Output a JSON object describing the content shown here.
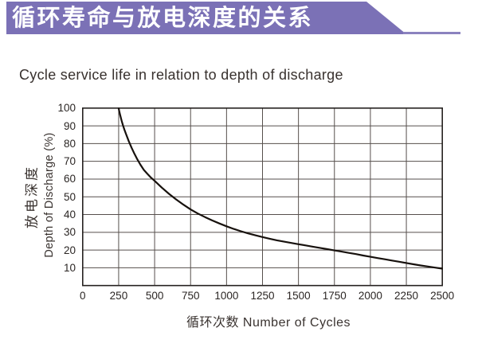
{
  "banner": {
    "title_zh": "循环寿命与放电深度的关系",
    "color": "#7b71b6"
  },
  "chart": {
    "title_en": "Cycle service life in relation to depth of discharge",
    "ylabel_zh": "放电深度",
    "ylabel_en": "Depth of Discharge (%)",
    "xlabel": "循环次数 Number of Cycles"
  },
  "chart_data": {
    "type": "line",
    "title": "Cycle service life in relation to depth of discharge",
    "xlabel": "循环次数 Number of Cycles",
    "ylabel": "放电深度 Depth of Discharge (%)",
    "xlim": [
      0,
      2500
    ],
    "ylim": [
      0,
      100
    ],
    "x_ticks": [
      0,
      250,
      500,
      750,
      1000,
      1250,
      1500,
      1750,
      2000,
      2250,
      2500
    ],
    "y_ticks": [
      10,
      20,
      30,
      40,
      50,
      60,
      70,
      80,
      90,
      100
    ],
    "grid": true,
    "legend": false,
    "key_points": [
      [
        250,
        100
      ],
      [
        500,
        59
      ],
      [
        750,
        43
      ],
      [
        1000,
        33.5
      ],
      [
        1250,
        27.5
      ],
      [
        1500,
        23.5
      ],
      [
        1750,
        20
      ],
      [
        2000,
        16
      ],
      [
        2250,
        12.5
      ],
      [
        2500,
        9.5
      ]
    ],
    "series": [
      {
        "name": "cycle-life-vs-depth-of-discharge",
        "points": [
          [
            250,
            100
          ],
          [
            255,
            98
          ],
          [
            260,
            96.3
          ],
          [
            270,
            93
          ],
          [
            280,
            90.2
          ],
          [
            290,
            87.8
          ],
          [
            300,
            85.6
          ],
          [
            320,
            81.4
          ],
          [
            340,
            77.6
          ],
          [
            360,
            74.2
          ],
          [
            380,
            71.1
          ],
          [
            400,
            68.3
          ],
          [
            425,
            65.2
          ],
          [
            450,
            62.9
          ],
          [
            475,
            60.8
          ],
          [
            500,
            59
          ],
          [
            550,
            55.2
          ],
          [
            600,
            51.7
          ],
          [
            650,
            48.5
          ],
          [
            700,
            45.6
          ],
          [
            750,
            42.9
          ],
          [
            800,
            40.6
          ],
          [
            850,
            38.6
          ],
          [
            900,
            36.7
          ],
          [
            950,
            35
          ],
          [
            1000,
            33.4
          ],
          [
            1050,
            31.9
          ],
          [
            1100,
            30.6
          ],
          [
            1150,
            29.4
          ],
          [
            1200,
            28.3
          ],
          [
            1250,
            27.3
          ],
          [
            1300,
            26.4
          ],
          [
            1350,
            25.5
          ],
          [
            1400,
            24.7
          ],
          [
            1450,
            24
          ],
          [
            1500,
            23.3
          ],
          [
            1550,
            22.6
          ],
          [
            1600,
            21.9
          ],
          [
            1650,
            21.2
          ],
          [
            1700,
            20.5
          ],
          [
            1750,
            19.8
          ],
          [
            1800,
            19.1
          ],
          [
            1850,
            18.4
          ],
          [
            1900,
            17.7
          ],
          [
            1950,
            16.9
          ],
          [
            2000,
            16.2
          ],
          [
            2050,
            15.5
          ],
          [
            2100,
            14.8
          ],
          [
            2150,
            14.1
          ],
          [
            2200,
            13.4
          ],
          [
            2250,
            12.7
          ],
          [
            2300,
            12
          ],
          [
            2350,
            11.3
          ],
          [
            2400,
            10.7
          ],
          [
            2450,
            10.1
          ],
          [
            2500,
            9.5
          ]
        ]
      }
    ],
    "colors": {
      "curve": "#17110d",
      "grid": "#564f4c",
      "border": "#262220"
    }
  }
}
